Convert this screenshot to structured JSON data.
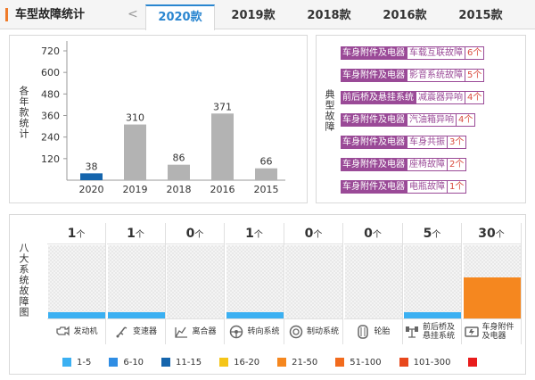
{
  "header": {
    "title": "车型故障统计",
    "prev_arrow": "<",
    "tabs": [
      {
        "label": "2020款",
        "active": true
      },
      {
        "label": "2019款",
        "active": false
      },
      {
        "label": "2018款",
        "active": false
      },
      {
        "label": "2016款",
        "active": false
      },
      {
        "label": "2015款",
        "active": false
      }
    ]
  },
  "stats_panel": {
    "vertical_label": "各年款统计"
  },
  "chart_data": {
    "type": "bar",
    "title": "",
    "ylabel": "各年款统计",
    "xlabel": "",
    "categories": [
      "2020",
      "2019",
      "2018",
      "2016",
      "2015"
    ],
    "values": [
      38,
      310,
      86,
      371,
      66
    ],
    "bar_colors": [
      "#1565ad",
      "#b3b3b3",
      "#b3b3b3",
      "#b3b3b3",
      "#b3b3b3"
    ],
    "yticks": [
      120,
      240,
      360,
      480,
      600,
      720
    ],
    "ylim": [
      0,
      720
    ],
    "grid": false
  },
  "faults_panel": {
    "vertical_label": "典型故障",
    "items": [
      {
        "category": "车身附件及电器",
        "name": "车载互联故障",
        "count": "6个"
      },
      {
        "category": "车身附件及电器",
        "name": "影音系统故障",
        "count": "5个"
      },
      {
        "category": "前后桥及悬挂系统",
        "name": "减震器异响",
        "count": "4个"
      },
      {
        "category": "车身附件及电器",
        "name": "汽油箱异响",
        "count": "4个"
      },
      {
        "category": "车身附件及电器",
        "name": "车身共振",
        "count": "3个"
      },
      {
        "category": "车身附件及电器",
        "name": "座椅故障",
        "count": "2个"
      },
      {
        "category": "车身附件及电器",
        "name": "电瓶故障",
        "count": "1个"
      }
    ]
  },
  "systems_panel": {
    "vertical_label": "八大系统故障图",
    "unit": "个",
    "systems": [
      {
        "name": "发动机",
        "count": "1",
        "level": 0.09,
        "color": "#3bb0f2",
        "icon": "engine-icon"
      },
      {
        "name": "变速器",
        "count": "1",
        "level": 0.09,
        "color": "#3bb0f2",
        "icon": "gearbox-icon"
      },
      {
        "name": "离合器",
        "count": "0",
        "level": 0,
        "color": "#3bb0f2",
        "icon": "clutch-icon"
      },
      {
        "name": "转向系统",
        "count": "1",
        "level": 0.09,
        "color": "#3bb0f2",
        "icon": "steering-icon"
      },
      {
        "name": "制动系统",
        "count": "0",
        "level": 0,
        "color": "#3bb0f2",
        "icon": "brake-icon"
      },
      {
        "name": "轮胎",
        "count": "0",
        "level": 0,
        "color": "#3bb0f2",
        "icon": "tire-icon"
      },
      {
        "name": "前后桥及悬挂系统",
        "count": "5",
        "level": 0.09,
        "color": "#3bb0f2",
        "icon": "suspension-icon"
      },
      {
        "name": "车身附件及电器",
        "count": "30",
        "level": 0.56,
        "color": "#f5871f",
        "icon": "body-electrical-icon"
      }
    ]
  },
  "legend": [
    {
      "label": "1-5",
      "color": "#3bb0f2"
    },
    {
      "label": "6-10",
      "color": "#2f8de4"
    },
    {
      "label": "11-15",
      "color": "#1565ad"
    },
    {
      "label": "16-20",
      "color": "#f5c518"
    },
    {
      "label": "21-50",
      "color": "#f5871f"
    },
    {
      "label": "51-100",
      "color": "#f26b1d"
    },
    {
      "label": "101-300",
      "color": "#e8481c"
    },
    {
      "label": "",
      "color": "#e81c1c"
    }
  ]
}
